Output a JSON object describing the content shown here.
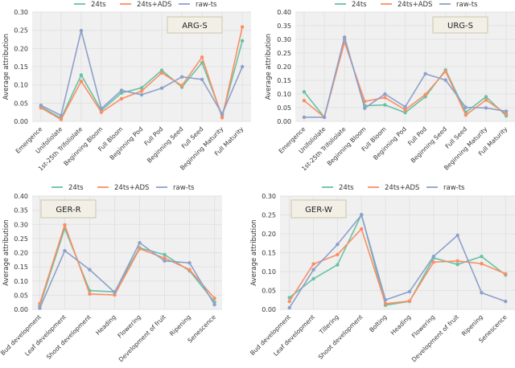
{
  "colors": {
    "24ts": "#66c2a5",
    "24ts+ADS": "#fc8d62",
    "raw-ts": "#8da0cb",
    "plot_bg": "#f0f0f0",
    "grid": "#e2e2e2",
    "label_box_bg": "#f2efe6",
    "label_box_border": "#cdc6a8"
  },
  "chart_data": [
    {
      "type": "line",
      "title": "ARG-S",
      "xlabel": "",
      "ylabel": "Average attribution",
      "ylim": [
        0,
        0.3
      ],
      "yticks": [
        "0.00",
        "0.05",
        "0.10",
        "0.15",
        "0.20",
        "0.25",
        "0.30"
      ],
      "legend": [
        "24ts",
        "24ts+ADS",
        "raw-ts"
      ],
      "legend_position": "top-center",
      "label_position": "top-right",
      "grid": true,
      "categories": [
        "Emergence",
        "Unifoliolate",
        "1st-25th Trifoliolate",
        "Beginning Bloom",
        "Full Bloom",
        "Beginning Pod",
        "Full Pod",
        "Beginning Seed",
        "Full Seed",
        "Beginning Maturity",
        "Full Maturity"
      ],
      "series": [
        {
          "name": "24ts",
          "values": [
            0.04,
            0.008,
            0.127,
            0.03,
            0.078,
            0.092,
            0.14,
            0.094,
            0.161,
            0.015,
            0.221
          ]
        },
        {
          "name": "24ts+ADS",
          "values": [
            0.037,
            0.005,
            0.11,
            0.025,
            0.062,
            0.083,
            0.133,
            0.098,
            0.176,
            0.01,
            0.259
          ]
        },
        {
          "name": "raw-ts",
          "values": [
            0.044,
            0.016,
            0.249,
            0.035,
            0.085,
            0.073,
            0.091,
            0.122,
            0.115,
            0.02,
            0.15
          ]
        }
      ]
    },
    {
      "type": "line",
      "title": "URG-S",
      "xlabel": "",
      "ylabel": "Average attribution",
      "ylim": [
        0,
        0.4
      ],
      "yticks": [
        "0.00",
        "0.05",
        "0.10",
        "0.15",
        "0.20",
        "0.25",
        "0.30",
        "0.35",
        "0.40"
      ],
      "legend": [
        "24ts",
        "24ts+ADS",
        "raw-ts"
      ],
      "legend_position": "top-center",
      "label_position": "top-right",
      "grid": true,
      "categories": [
        "Emergence",
        "Unifoliolate",
        "1st-25th Trifoliolate",
        "Beginning Bloom",
        "Full Bloom",
        "Beginning Pod",
        "Full Pod",
        "Beginning Seed",
        "Full Seed",
        "Beginning Maturity",
        "Full Maturity"
      ],
      "series": [
        {
          "name": "24ts",
          "values": [
            0.108,
            0.015,
            0.3,
            0.057,
            0.06,
            0.032,
            0.09,
            0.188,
            0.033,
            0.09,
            0.02
          ]
        },
        {
          "name": "24ts+ADS",
          "values": [
            0.076,
            0.015,
            0.29,
            0.073,
            0.087,
            0.042,
            0.098,
            0.183,
            0.023,
            0.078,
            0.027
          ]
        },
        {
          "name": "raw-ts",
          "values": [
            0.015,
            0.015,
            0.308,
            0.048,
            0.1,
            0.053,
            0.174,
            0.151,
            0.051,
            0.049,
            0.037
          ]
        }
      ]
    },
    {
      "type": "line",
      "title": "GER-R",
      "xlabel": "",
      "ylabel": "Average attribution",
      "ylim": [
        0,
        0.4
      ],
      "yticks": [
        "0.00",
        "0.05",
        "0.10",
        "0.15",
        "0.20",
        "0.25",
        "0.30",
        "0.35",
        "0.40"
      ],
      "legend": [
        "24ts",
        "24ts+ADS",
        "raw-ts"
      ],
      "legend_position": "top-center",
      "label_position": "top-left",
      "grid": true,
      "categories": [
        "Bud development",
        "Leaf development",
        "Shoot development",
        "Heading",
        "Flowering",
        "Development of fruit",
        "Ripening",
        "Senescence"
      ],
      "series": [
        {
          "name": "24ts",
          "values": [
            0.012,
            0.286,
            0.066,
            0.062,
            0.217,
            0.193,
            0.136,
            0.026
          ]
        },
        {
          "name": "24ts+ADS",
          "values": [
            0.02,
            0.298,
            0.054,
            0.051,
            0.214,
            0.181,
            0.14,
            0.039
          ]
        },
        {
          "name": "raw-ts",
          "values": [
            0.004,
            0.207,
            0.14,
            0.06,
            0.235,
            0.171,
            0.164,
            0.017
          ]
        }
      ]
    },
    {
      "type": "line",
      "title": "GER-W",
      "xlabel": "",
      "ylabel": "Average attribution",
      "ylim": [
        0,
        0.3
      ],
      "yticks": [
        "0.00",
        "0.05",
        "0.10",
        "0.15",
        "0.20",
        "0.25",
        "0.30"
      ],
      "legend": [
        "24ts",
        "24ts+ADS",
        "raw-ts"
      ],
      "legend_position": "top-center",
      "label_position": "top-left",
      "grid": true,
      "categories": [
        "Bud development",
        "Leaf development",
        "Tillering",
        "Shoot development",
        "Bolting",
        "Heading",
        "Flowering",
        "Development of fruit",
        "Ripening",
        "Senescence"
      ],
      "series": [
        {
          "name": "24ts",
          "values": [
            0.031,
            0.081,
            0.118,
            0.251,
            0.011,
            0.021,
            0.136,
            0.119,
            0.14,
            0.091
          ]
        },
        {
          "name": "24ts+ADS",
          "values": [
            0.021,
            0.12,
            0.145,
            0.213,
            0.015,
            0.022,
            0.125,
            0.128,
            0.121,
            0.094
          ]
        },
        {
          "name": "raw-ts",
          "values": [
            0.004,
            0.105,
            0.172,
            0.25,
            0.025,
            0.047,
            0.14,
            0.196,
            0.044,
            0.021
          ]
        }
      ]
    }
  ]
}
